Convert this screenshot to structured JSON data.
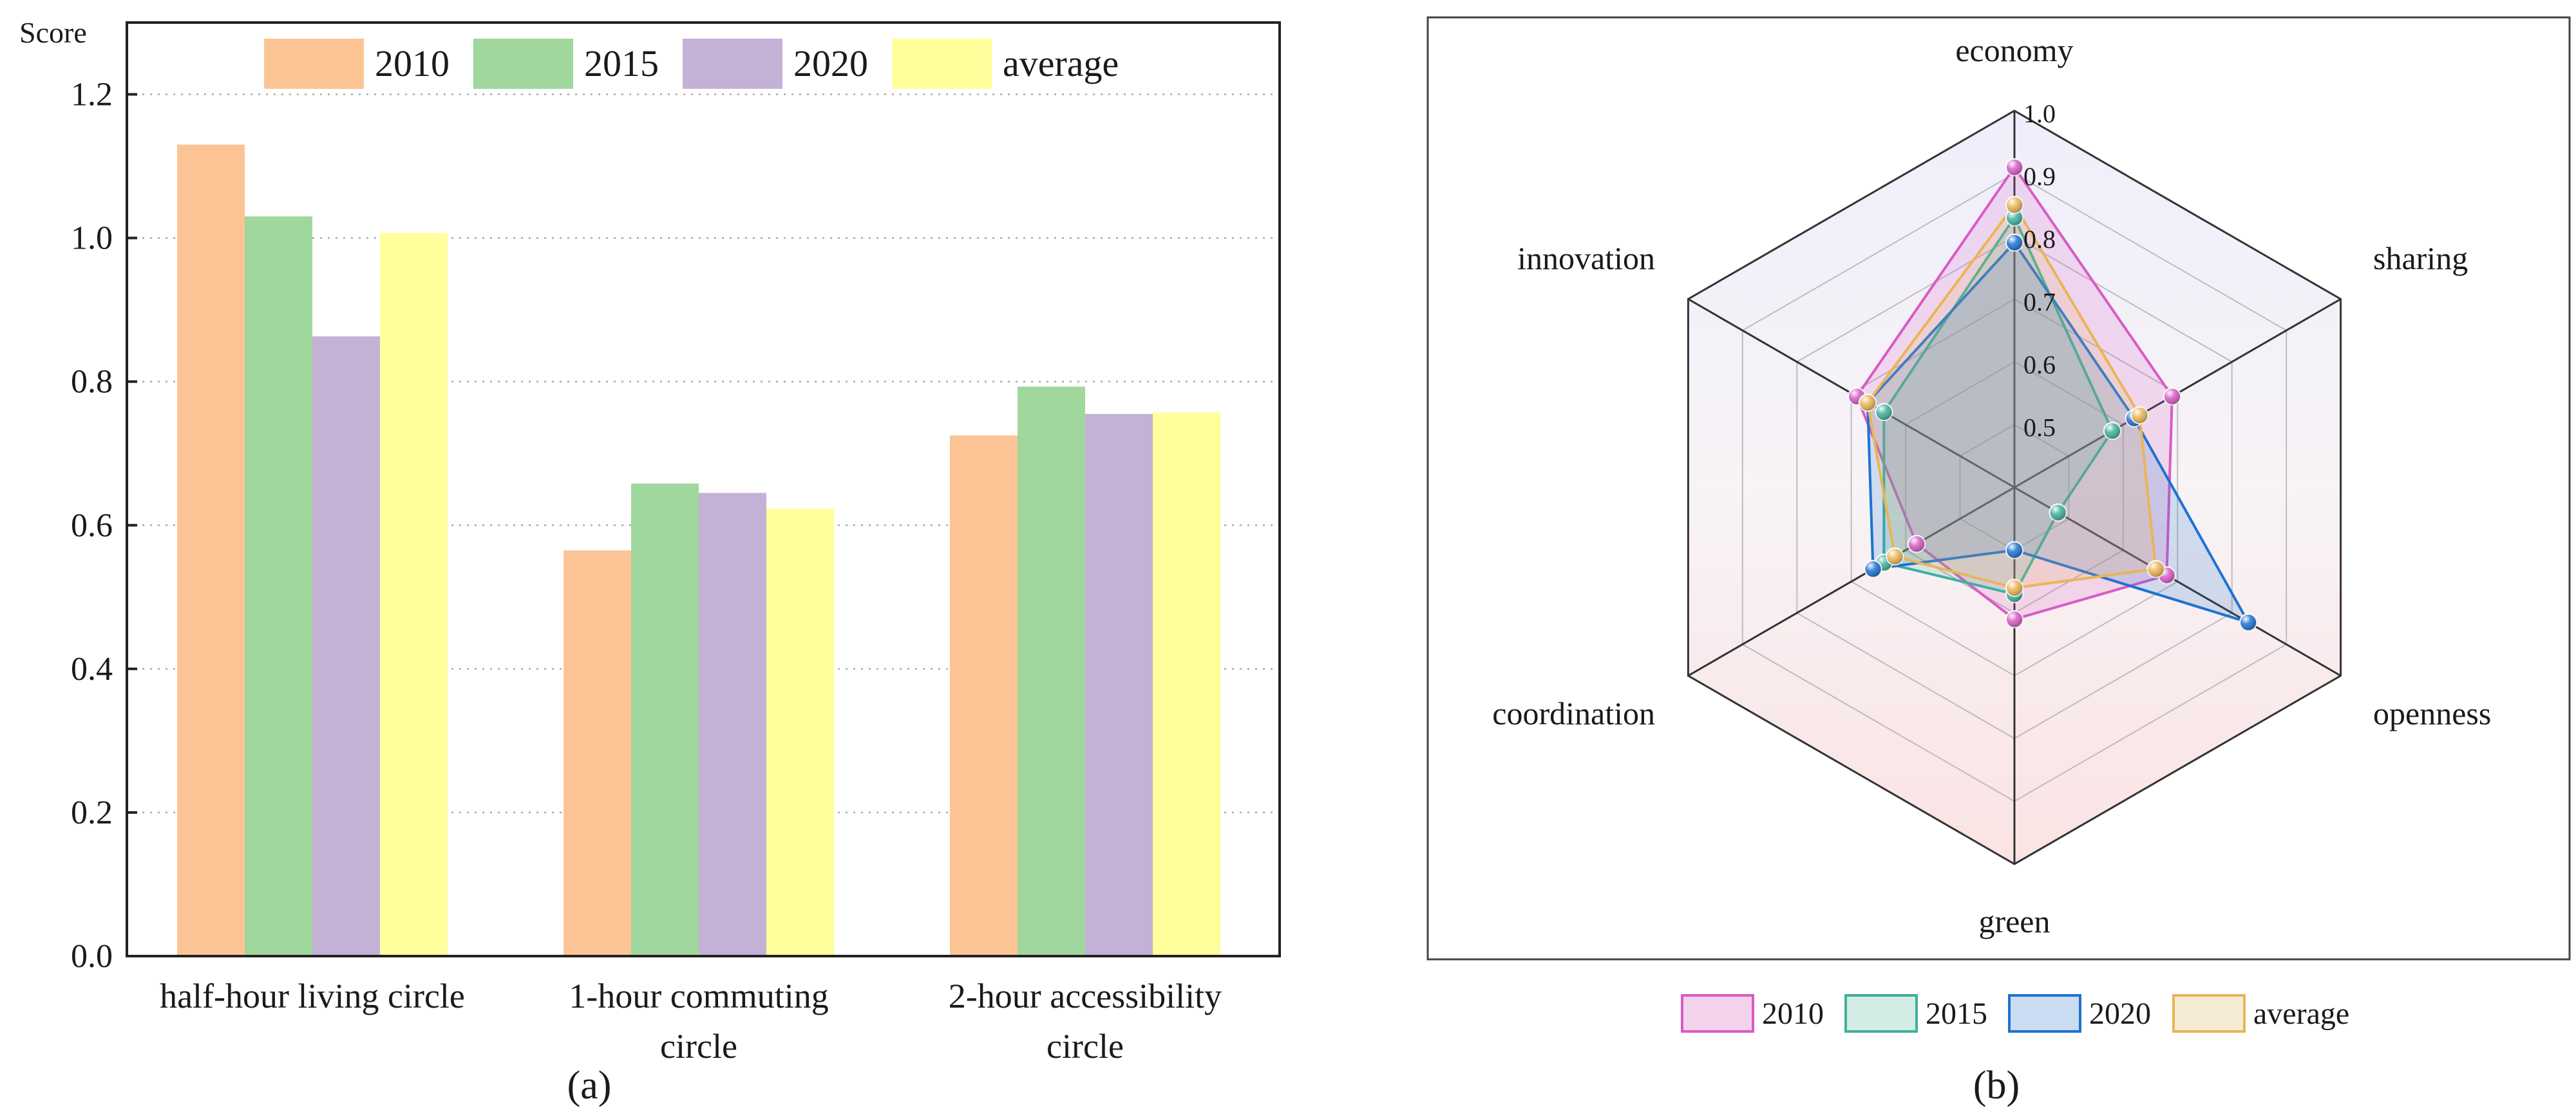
{
  "chart_data": [
    {
      "type": "bar",
      "panel_label": "(a)",
      "ylabel": "Score",
      "ylim": [
        0,
        1.3
      ],
      "yticks": [
        "0.0",
        "0.2",
        "0.4",
        "0.6",
        "0.8",
        "1.0",
        "1.2"
      ],
      "grid": true,
      "legend_position": "top",
      "categories": [
        [
          "half-hour living circle"
        ],
        [
          "1-hour commuting",
          "circle"
        ],
        [
          "2-hour accessibility",
          "circle"
        ]
      ],
      "series": [
        {
          "name": "2010",
          "color": "#FCC495",
          "values": [
            1.13,
            0.565,
            0.725
          ]
        },
        {
          "name": "2015",
          "color": "#A0D79C",
          "values": [
            1.03,
            0.658,
            0.793
          ]
        },
        {
          "name": "2020",
          "color": "#C3B2D6",
          "values": [
            0.863,
            0.645,
            0.755
          ]
        },
        {
          "name": "average",
          "color": "#FFFF9C",
          "values": [
            1.007,
            0.623,
            0.757
          ]
        }
      ]
    },
    {
      "type": "radar",
      "panel_label": "(b)",
      "axes": [
        "economy",
        "sharing",
        "openness",
        "green",
        "coordination",
        "innovation"
      ],
      "rlim": [
        0.4,
        1.0
      ],
      "rticks": [
        "0.5",
        "0.6",
        "0.7",
        "0.8",
        "0.9",
        "1.0"
      ],
      "legend_position": "bottom",
      "series": [
        {
          "name": "2010",
          "color": "#D85BC4",
          "fill": "#F3D3EC",
          "values": [
            0.91,
            0.69,
            0.68,
            0.61,
            0.58,
            0.69
          ]
        },
        {
          "name": "2015",
          "color": "#3FB09C",
          "fill": "#D3EDE6",
          "values": [
            0.83,
            0.58,
            0.48,
            0.57,
            0.64,
            0.64
          ]
        },
        {
          "name": "2020",
          "color": "#1E72D2",
          "fill": "#CADCF2",
          "values": [
            0.79,
            0.62,
            0.83,
            0.5,
            0.66,
            0.67
          ]
        },
        {
          "name": "average",
          "color": "#E9B556",
          "fill": "#F6EBD5",
          "values": [
            0.85,
            0.63,
            0.66,
            0.56,
            0.62,
            0.67
          ]
        }
      ]
    }
  ]
}
